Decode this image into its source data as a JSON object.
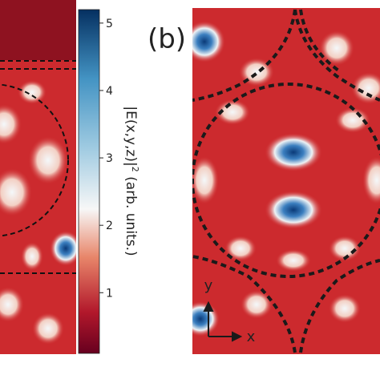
{
  "panel_label": "(b)",
  "colorbar": {
    "label": "|E(x,y,z)|",
    "label_power": "2",
    "label_units": "(arb. units.)",
    "lim": [
      0.1,
      5.2
    ],
    "ticks": [
      1,
      2,
      3,
      4,
      5
    ]
  },
  "axes": {
    "y": "y",
    "x": "x"
  }
}
